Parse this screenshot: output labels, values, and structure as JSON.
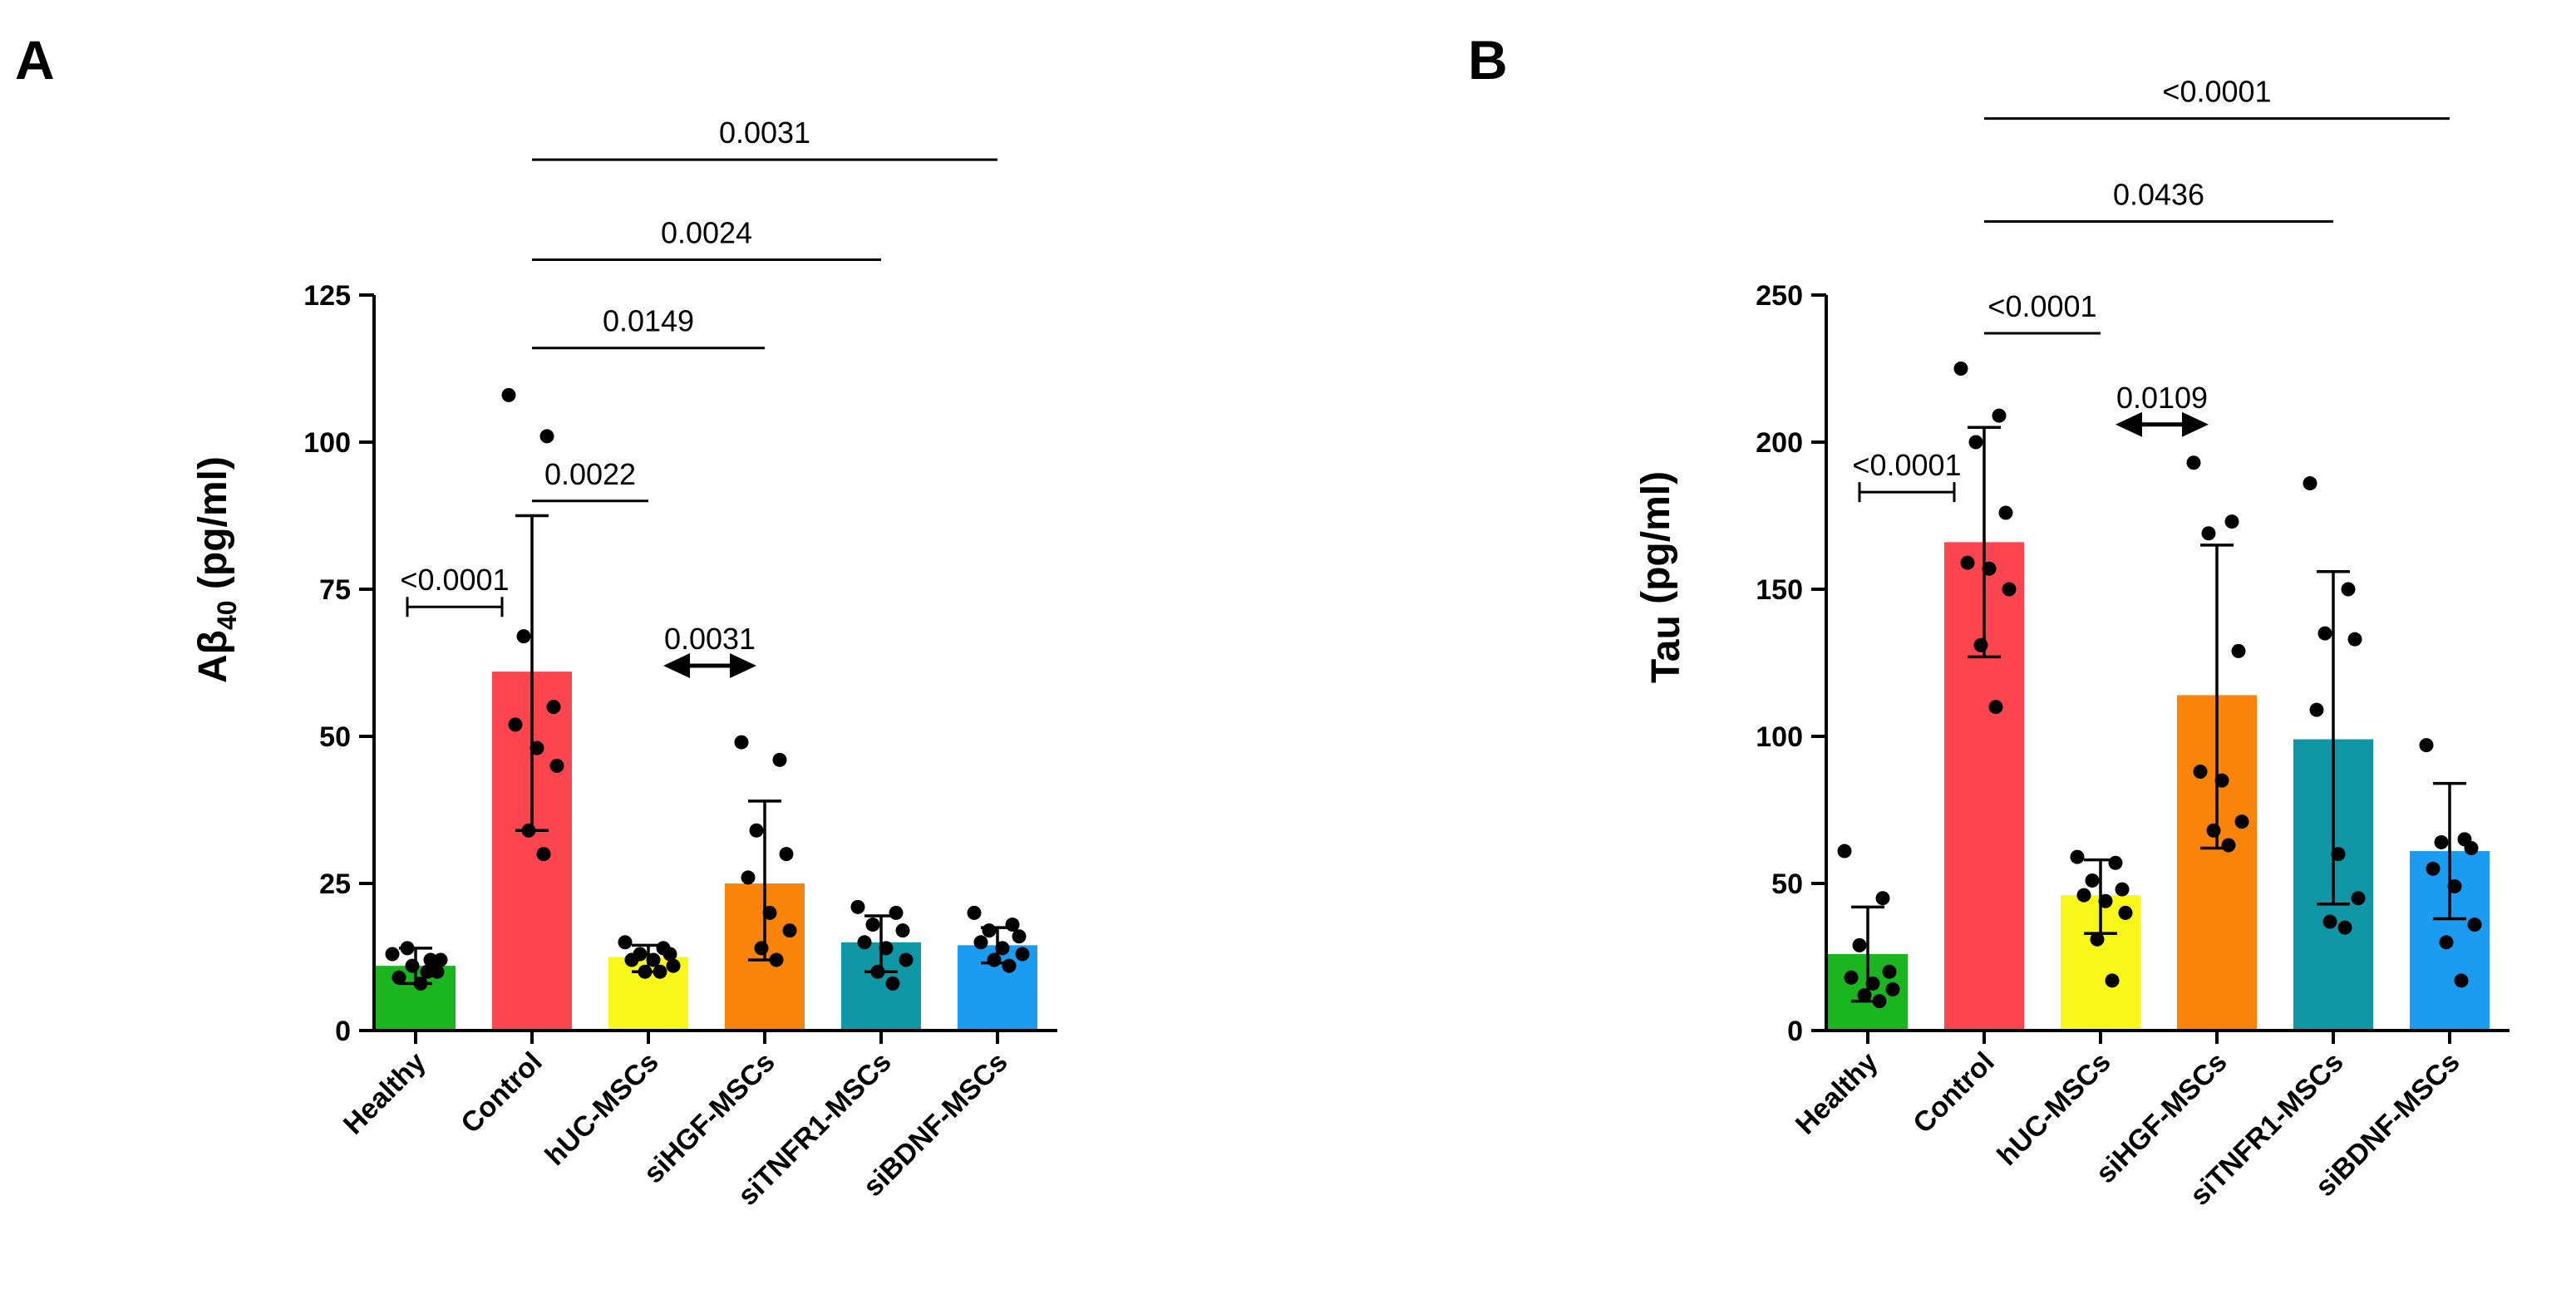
{
  "colors": {
    "Healthy": "#1bb51f",
    "Control": "#fd4550",
    "hUC-MSCs": "#f7f71a",
    "siHGF-MSCs": "#fa8409",
    "siTNFR1-MSCs": "#0f97a6",
    "siBDNF-MSCs": "#1c9cf0"
  },
  "chart_data": [
    {
      "panel": "A",
      "type": "bar",
      "title": "",
      "ylabel": "Aβ",
      "ylabel_sub": "40",
      "ylabel_unit": "(pg/ml)",
      "ylim": [
        0,
        125
      ],
      "yticks": [
        0,
        25,
        50,
        75,
        100,
        125
      ],
      "grid": false,
      "categories": [
        "Healthy",
        "Control",
        "hUC-MSCs",
        "siHGF-MSCs",
        "siTNFR1-MSCs",
        "siBDNF-MSCs"
      ],
      "values": [
        11,
        61,
        12.5,
        25,
        15,
        14.5
      ],
      "error_low": [
        8,
        34,
        10,
        12,
        10,
        11.5
      ],
      "error_high": [
        14,
        87.5,
        14.5,
        39,
        19.5,
        17.5
      ],
      "points": [
        [
          13,
          12,
          14,
          10,
          9,
          8,
          12,
          11,
          10
        ],
        [
          108,
          101,
          67,
          55,
          52,
          48,
          45,
          34,
          30
        ],
        [
          15,
          14,
          13,
          13,
          12,
          12,
          11,
          10,
          10
        ],
        [
          49,
          46,
          34,
          30,
          26,
          20,
          17,
          14,
          12
        ],
        [
          21,
          20,
          18,
          17,
          15,
          14,
          12,
          10,
          8
        ],
        [
          20,
          18,
          17,
          16,
          15,
          14,
          13,
          12,
          11
        ]
      ],
      "comparisons": [
        {
          "from": 0,
          "to": 1,
          "label": "<0.0001",
          "y": 72,
          "style": "bracket"
        },
        {
          "from": 1,
          "to": 2,
          "label": "0.0022",
          "y": 90,
          "style": "line"
        },
        {
          "from": 2,
          "to": 3,
          "label": "0.0031",
          "y": 62,
          "style": "arrow"
        },
        {
          "from": 1,
          "to": 3,
          "label": "0.0149",
          "y": 116,
          "style": "line"
        },
        {
          "from": 1,
          "to": 4,
          "label": "0.0024",
          "y": 131,
          "style": "line"
        },
        {
          "from": 1,
          "to": 5,
          "label": "0.0031",
          "y": 148,
          "style": "line"
        }
      ]
    },
    {
      "panel": "B",
      "type": "bar",
      "title": "",
      "ylabel": "Tau",
      "ylabel_sub": "",
      "ylabel_unit": "(pg/ml)",
      "ylim": [
        0,
        250
      ],
      "yticks": [
        0,
        50,
        100,
        150,
        200,
        250
      ],
      "grid": false,
      "categories": [
        "Healthy",
        "Control",
        "hUC-MSCs",
        "siHGF-MSCs",
        "siTNFR1-MSCs",
        "siBDNF-MSCs"
      ],
      "values": [
        26,
        166,
        46,
        114,
        99,
        61
      ],
      "error_low": [
        10,
        127,
        33,
        62,
        43,
        38
      ],
      "error_high": [
        42,
        205,
        58,
        165,
        156,
        84
      ],
      "points": [
        [
          61,
          45,
          29,
          20,
          18,
          16,
          14,
          12,
          10
        ],
        [
          225,
          209,
          200,
          176,
          159,
          157,
          150,
          131,
          110
        ],
        [
          59,
          57,
          51,
          48,
          46,
          44,
          40,
          31,
          17
        ],
        [
          193,
          173,
          169,
          129,
          88,
          85,
          71,
          68,
          63
        ],
        [
          186,
          150,
          135,
          133,
          109,
          60,
          45,
          37,
          35
        ],
        [
          97,
          65,
          64,
          62,
          55,
          49,
          36,
          30,
          17
        ]
      ],
      "comparisons": [
        {
          "from": 0,
          "to": 1,
          "label": "<0.0001",
          "y": 183,
          "style": "bracket"
        },
        {
          "from": 1,
          "to": 2,
          "label": "<0.0001",
          "y": 237,
          "style": "line"
        },
        {
          "from": 2,
          "to": 3,
          "label": "0.0109",
          "y": 206,
          "style": "arrow"
        },
        {
          "from": 1,
          "to": 4,
          "label": "0.0436",
          "y": 275,
          "style": "line"
        },
        {
          "from": 1,
          "to": 5,
          "label": "<0.0001",
          "y": 310,
          "style": "line"
        }
      ]
    }
  ]
}
